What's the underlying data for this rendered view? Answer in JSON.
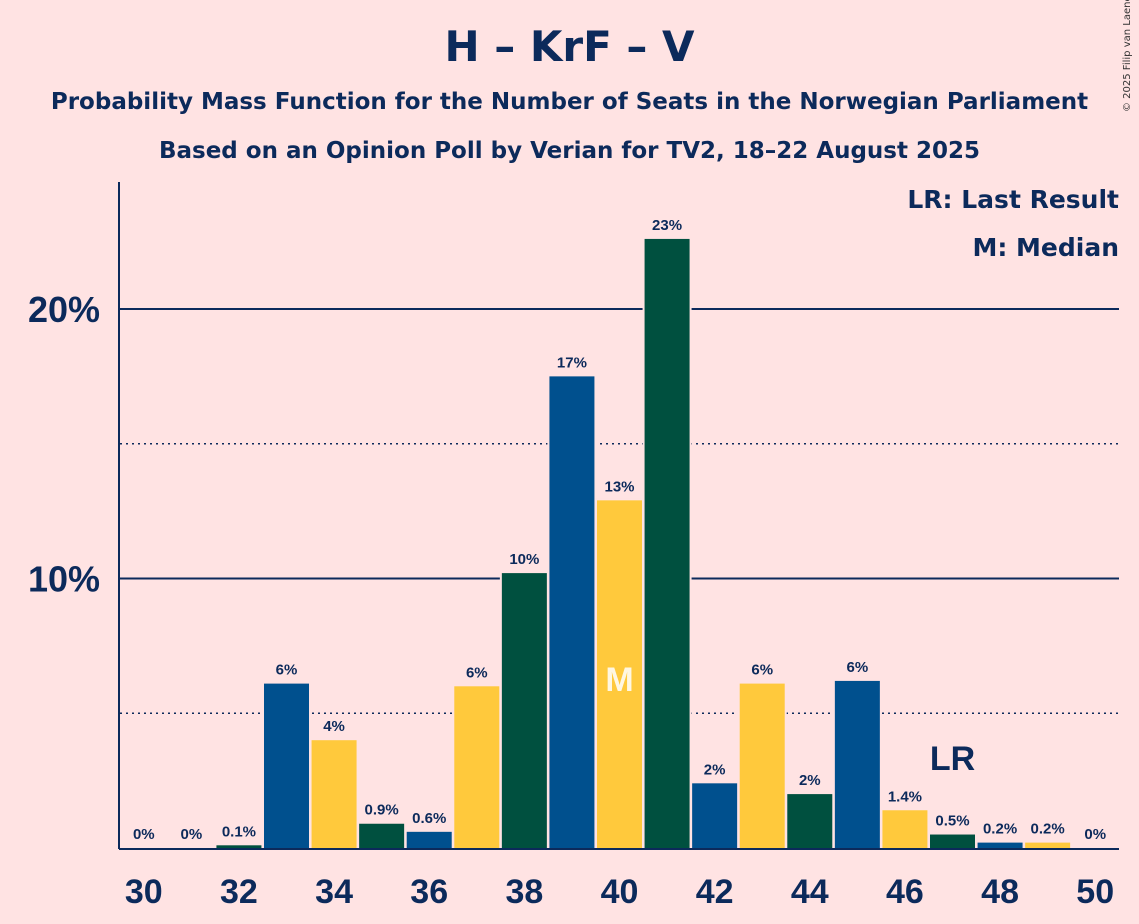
{
  "title": "H – KrF – V",
  "subtitle": "Probability Mass Function for the Number of Seats in the Norwegian Parliament",
  "subtitle2": "Based on an Opinion Poll by Verian for TV2, 18–22 August 2025",
  "copyright": "© 2025 Filip van Laenen",
  "legend": {
    "lr": "LR: Last Result",
    "median": "M: Median"
  },
  "colors": {
    "background": "#FFE3E3",
    "text": "#0C2A5B",
    "blue": "#00508E",
    "yellow": "#FFC93C",
    "green": "#00503F"
  },
  "chart_data": {
    "type": "bar",
    "x": [
      30,
      31,
      32,
      33,
      34,
      35,
      36,
      37,
      38,
      39,
      40,
      41,
      42,
      43,
      44,
      45,
      46,
      47,
      48,
      49,
      50
    ],
    "values": [
      0,
      0,
      0.1,
      6.1,
      4.0,
      0.9,
      0.6,
      6.0,
      10.2,
      17.5,
      12.9,
      22.6,
      2.4,
      6.1,
      2.0,
      6.2,
      1.4,
      0.5,
      0.2,
      0.2,
      0
    ],
    "labels": [
      "0%",
      "0%",
      "0.1%",
      "6%",
      "4%",
      "0.9%",
      "0.6%",
      "6%",
      "10%",
      "17%",
      "13%",
      "23%",
      "2%",
      "6%",
      "2%",
      "6%",
      "1.4%",
      "0.5%",
      "0.2%",
      "0.2%",
      "0%"
    ],
    "bar_colors": [
      "blue",
      "yellow",
      "green",
      "blue",
      "yellow",
      "green",
      "blue",
      "yellow",
      "green",
      "blue",
      "yellow",
      "green",
      "blue",
      "yellow",
      "green",
      "blue",
      "yellow",
      "green",
      "blue",
      "yellow",
      "green"
    ],
    "xticks": [
      "30",
      "32",
      "34",
      "36",
      "38",
      "40",
      "42",
      "44",
      "46",
      "48",
      "50"
    ],
    "yticks": [
      {
        "value": 10,
        "label": "10%"
      },
      {
        "value": 20,
        "label": "20%"
      }
    ],
    "ygrid_minor": [
      5,
      15
    ],
    "ylim": [
      0,
      24.6
    ],
    "median": 40,
    "median_label": "M",
    "last_result": 47,
    "last_result_label": "LR"
  }
}
